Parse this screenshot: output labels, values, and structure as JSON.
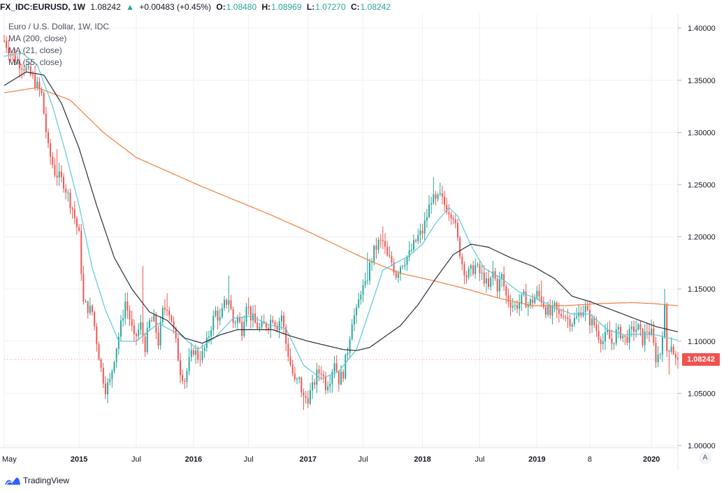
{
  "header": {
    "symbol": "FX_IDC:EURUSD, 1W",
    "last": "1.08242",
    "change_arrow": "▲",
    "change": "+0.00483 (+0.45%)",
    "o_label": "O:",
    "o_value": "1.08480",
    "h_label": "H:",
    "h_value": "1.08969",
    "l_label": "L:",
    "l_value": "1.07270",
    "c_label": "C:",
    "c_value": "1.08242"
  },
  "legend": {
    "title": "Euro / U.S. Dollar, 1W, IDC",
    "ma200": "MA (200, close)",
    "ma21": "MA (21, close)",
    "ma55": "MA (55, close)"
  },
  "price_tag": "1.08242",
  "auto_button": "A",
  "brand": "TradingView",
  "colors": {
    "up": "#26a69a",
    "down": "#ef5350",
    "ma200": "#f07c3a",
    "ma21": "#5bc8d8",
    "ma55": "#2a2e39",
    "grid": "#eef0f5",
    "axis_text": "#131722"
  },
  "chart_data": {
    "type": "candlestick",
    "title": "Euro / U.S. Dollar, 1W, IDC",
    "y_ticks": [
      "1.40000",
      "1.35000",
      "1.30000",
      "1.25000",
      "1.20000",
      "1.15000",
      "1.10000",
      "1.05000",
      "1.00000"
    ],
    "y_tick_values": [
      1.4,
      1.35,
      1.3,
      1.25,
      1.2,
      1.15,
      1.1,
      1.05,
      1.0
    ],
    "ylim": [
      0.998,
      1.4135
    ],
    "x_range_weeks": [
      0,
      306
    ],
    "x_ticks": [
      {
        "label": "May",
        "week": 0
      },
      {
        "label": "2015",
        "week": 34
      },
      {
        "label": "Jul",
        "week": 60
      },
      {
        "label": "2016",
        "week": 86
      },
      {
        "label": "Jul",
        "week": 111
      },
      {
        "label": "2017",
        "week": 138
      },
      {
        "label": "Jul",
        "week": 163
      },
      {
        "label": "2018",
        "week": 190
      },
      {
        "label": "Jul",
        "week": 216
      },
      {
        "label": "2019",
        "week": 242
      },
      {
        "label": "8",
        "week": 266
      },
      {
        "label": "2020",
        "week": 294
      }
    ],
    "close_path": [
      [
        0,
        1.388
      ],
      [
        4,
        1.372
      ],
      [
        9,
        1.363
      ],
      [
        13,
        1.352
      ],
      [
        17,
        1.336
      ],
      [
        20,
        1.284
      ],
      [
        23,
        1.262
      ],
      [
        27,
        1.252
      ],
      [
        31,
        1.227
      ],
      [
        34,
        1.201
      ],
      [
        36,
        1.136
      ],
      [
        40,
        1.128
      ],
      [
        44,
        1.073
      ],
      [
        46,
        1.055
      ],
      [
        48,
        1.061
      ],
      [
        50,
        1.085
      ],
      [
        53,
        1.115
      ],
      [
        55,
        1.138
      ],
      [
        57,
        1.122
      ],
      [
        59,
        1.101
      ],
      [
        62,
        1.115
      ],
      [
        64,
        1.095
      ],
      [
        66,
        1.118
      ],
      [
        68,
        1.12
      ],
      [
        70,
        1.099
      ],
      [
        72,
        1.128
      ],
      [
        74,
        1.134
      ],
      [
        76,
        1.121
      ],
      [
        78,
        1.098
      ],
      [
        80,
        1.072
      ],
      [
        82,
        1.063
      ],
      [
        84,
        1.08
      ],
      [
        86,
        1.092
      ],
      [
        88,
        1.085
      ],
      [
        90,
        1.087
      ],
      [
        92,
        1.098
      ],
      [
        94,
        1.115
      ],
      [
        96,
        1.128
      ],
      [
        98,
        1.12
      ],
      [
        100,
        1.135
      ],
      [
        102,
        1.141
      ],
      [
        104,
        1.118
      ],
      [
        106,
        1.122
      ],
      [
        108,
        1.111
      ],
      [
        110,
        1.138
      ],
      [
        112,
        1.124
      ],
      [
        114,
        1.117
      ],
      [
        116,
        1.112
      ],
      [
        118,
        1.115
      ],
      [
        120,
        1.117
      ],
      [
        122,
        1.123
      ],
      [
        124,
        1.115
      ],
      [
        126,
        1.125
      ],
      [
        128,
        1.098
      ],
      [
        130,
        1.078
      ],
      [
        132,
        1.06
      ],
      [
        134,
        1.062
      ],
      [
        136,
        1.045
      ],
      [
        138,
        1.046
      ],
      [
        140,
        1.055
      ],
      [
        142,
        1.068
      ],
      [
        144,
        1.072
      ],
      [
        146,
        1.058
      ],
      [
        148,
        1.065
      ],
      [
        150,
        1.082
      ],
      [
        152,
        1.063
      ],
      [
        154,
        1.07
      ],
      [
        156,
        1.092
      ],
      [
        158,
        1.121
      ],
      [
        160,
        1.127
      ],
      [
        162,
        1.149
      ],
      [
        164,
        1.152
      ],
      [
        166,
        1.172
      ],
      [
        168,
        1.186
      ],
      [
        170,
        1.194
      ],
      [
        172,
        1.195
      ],
      [
        174,
        1.18
      ],
      [
        176,
        1.176
      ],
      [
        178,
        1.164
      ],
      [
        180,
        1.173
      ],
      [
        182,
        1.178
      ],
      [
        184,
        1.183
      ],
      [
        186,
        1.192
      ],
      [
        188,
        1.2
      ],
      [
        190,
        1.205
      ],
      [
        192,
        1.22
      ],
      [
        194,
        1.237
      ],
      [
        196,
        1.233
      ],
      [
        198,
        1.238
      ],
      [
        200,
        1.231
      ],
      [
        202,
        1.226
      ],
      [
        204,
        1.221
      ],
      [
        206,
        1.196
      ],
      [
        208,
        1.175
      ],
      [
        210,
        1.163
      ],
      [
        212,
        1.167
      ],
      [
        214,
        1.172
      ],
      [
        216,
        1.165
      ],
      [
        218,
        1.16
      ],
      [
        220,
        1.15
      ],
      [
        222,
        1.166
      ],
      [
        224,
        1.152
      ],
      [
        226,
        1.162
      ],
      [
        228,
        1.143
      ],
      [
        230,
        1.137
      ],
      [
        232,
        1.133
      ],
      [
        234,
        1.137
      ],
      [
        236,
        1.142
      ],
      [
        238,
        1.135
      ],
      [
        240,
        1.139
      ],
      [
        242,
        1.145
      ],
      [
        244,
        1.14
      ],
      [
        246,
        1.131
      ],
      [
        248,
        1.125
      ],
      [
        250,
        1.132
      ],
      [
        252,
        1.124
      ],
      [
        254,
        1.128
      ],
      [
        256,
        1.121
      ],
      [
        258,
        1.119
      ],
      [
        260,
        1.122
      ],
      [
        262,
        1.13
      ],
      [
        264,
        1.131
      ],
      [
        266,
        1.12
      ],
      [
        268,
        1.116
      ],
      [
        270,
        1.106
      ],
      [
        272,
        1.1
      ],
      [
        274,
        1.107
      ],
      [
        276,
        1.098
      ],
      [
        278,
        1.108
      ],
      [
        280,
        1.108
      ],
      [
        282,
        1.102
      ],
      [
        284,
        1.106
      ],
      [
        286,
        1.112
      ],
      [
        288,
        1.112
      ],
      [
        290,
        1.101
      ],
      [
        292,
        1.111
      ],
      [
        294,
        1.107
      ],
      [
        296,
        1.084
      ],
      [
        298,
        1.089
      ],
      [
        300,
        1.13
      ],
      [
        301,
        1.091
      ],
      [
        303,
        1.098
      ],
      [
        305,
        1.082
      ],
      [
        306,
        1.08242
      ]
    ],
    "ma200": [
      [
        0,
        1.338
      ],
      [
        15,
        1.343
      ],
      [
        30,
        1.331
      ],
      [
        45,
        1.3
      ],
      [
        60,
        1.276
      ],
      [
        75,
        1.262
      ],
      [
        90,
        1.248
      ],
      [
        105,
        1.235
      ],
      [
        120,
        1.222
      ],
      [
        135,
        1.208
      ],
      [
        150,
        1.193
      ],
      [
        165,
        1.178
      ],
      [
        180,
        1.165
      ],
      [
        195,
        1.158
      ],
      [
        210,
        1.15
      ],
      [
        225,
        1.141
      ],
      [
        240,
        1.134
      ],
      [
        255,
        1.134
      ],
      [
        270,
        1.136
      ],
      [
        285,
        1.137
      ],
      [
        295,
        1.136
      ],
      [
        306,
        1.134
      ]
    ],
    "ma21": [
      [
        0,
        1.373
      ],
      [
        8,
        1.376
      ],
      [
        15,
        1.365
      ],
      [
        22,
        1.325
      ],
      [
        28,
        1.28
      ],
      [
        34,
        1.23
      ],
      [
        40,
        1.17
      ],
      [
        46,
        1.13
      ],
      [
        52,
        1.1
      ],
      [
        60,
        1.1
      ],
      [
        70,
        1.117
      ],
      [
        80,
        1.106
      ],
      [
        88,
        1.092
      ],
      [
        96,
        1.104
      ],
      [
        104,
        1.122
      ],
      [
        112,
        1.124
      ],
      [
        120,
        1.116
      ],
      [
        128,
        1.112
      ],
      [
        136,
        1.077
      ],
      [
        144,
        1.064
      ],
      [
        152,
        1.071
      ],
      [
        160,
        1.092
      ],
      [
        166,
        1.13
      ],
      [
        172,
        1.168
      ],
      [
        178,
        1.175
      ],
      [
        184,
        1.182
      ],
      [
        190,
        1.193
      ],
      [
        196,
        1.213
      ],
      [
        202,
        1.228
      ],
      [
        206,
        1.22
      ],
      [
        212,
        1.192
      ],
      [
        218,
        1.17
      ],
      [
        226,
        1.16
      ],
      [
        234,
        1.147
      ],
      [
        242,
        1.141
      ],
      [
        250,
        1.132
      ],
      [
        258,
        1.126
      ],
      [
        266,
        1.126
      ],
      [
        274,
        1.111
      ],
      [
        282,
        1.106
      ],
      [
        290,
        1.107
      ],
      [
        296,
        1.106
      ],
      [
        300,
        1.104
      ],
      [
        306,
        1.101
      ]
    ],
    "ma55": [
      [
        0,
        1.345
      ],
      [
        10,
        1.358
      ],
      [
        18,
        1.355
      ],
      [
        26,
        1.328
      ],
      [
        34,
        1.285
      ],
      [
        42,
        1.23
      ],
      [
        50,
        1.18
      ],
      [
        58,
        1.15
      ],
      [
        66,
        1.128
      ],
      [
        74,
        1.12
      ],
      [
        82,
        1.103
      ],
      [
        90,
        1.098
      ],
      [
        98,
        1.106
      ],
      [
        106,
        1.111
      ],
      [
        114,
        1.111
      ],
      [
        122,
        1.111
      ],
      [
        130,
        1.105
      ],
      [
        138,
        1.1
      ],
      [
        146,
        1.096
      ],
      [
        154,
        1.092
      ],
      [
        160,
        1.091
      ],
      [
        166,
        1.094
      ],
      [
        172,
        1.103
      ],
      [
        180,
        1.115
      ],
      [
        188,
        1.135
      ],
      [
        196,
        1.16
      ],
      [
        204,
        1.183
      ],
      [
        212,
        1.193
      ],
      [
        220,
        1.19
      ],
      [
        230,
        1.18
      ],
      [
        240,
        1.172
      ],
      [
        250,
        1.16
      ],
      [
        258,
        1.143
      ],
      [
        266,
        1.138
      ],
      [
        276,
        1.13
      ],
      [
        286,
        1.122
      ],
      [
        296,
        1.114
      ],
      [
        306,
        1.109
      ]
    ],
    "spikes": [
      [
        24,
        1.284
      ],
      [
        26,
        1.262
      ],
      [
        47,
        1.043
      ],
      [
        63,
        1.172
      ],
      [
        74,
        1.146
      ],
      [
        90,
        1.08
      ],
      [
        102,
        1.163
      ],
      [
        136,
        1.034
      ],
      [
        165,
        1.185
      ],
      [
        172,
        1.21
      ],
      [
        195,
        1.257
      ],
      [
        198,
        1.252
      ],
      [
        222,
        1.177
      ],
      [
        244,
        1.158
      ],
      [
        300,
        1.15
      ],
      [
        302,
        1.068
      ]
    ]
  }
}
